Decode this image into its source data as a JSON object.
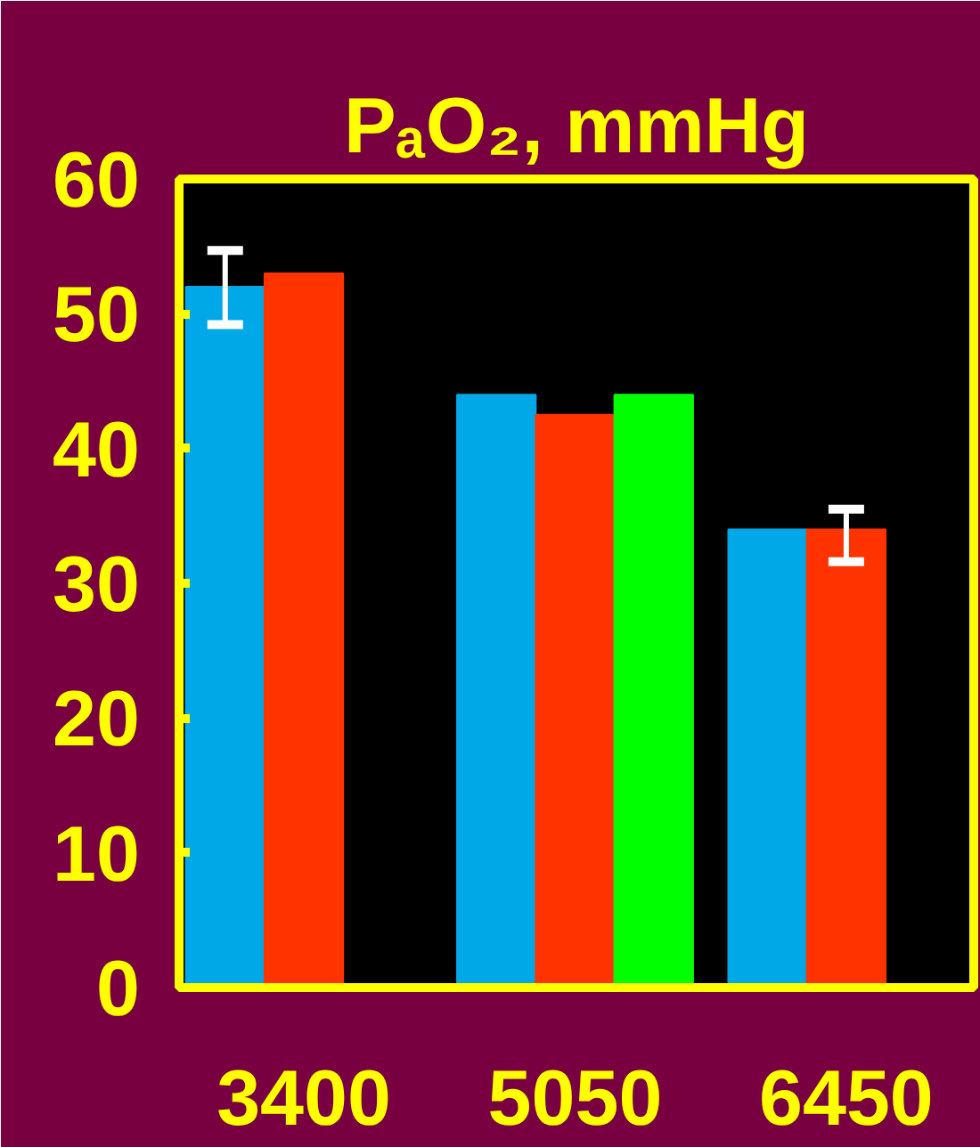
{
  "chart_data": {
    "type": "bar",
    "title": "PₐO₂, mmHg",
    "categories": [
      "3400",
      "5050",
      "6450"
    ],
    "series": [
      {
        "color": "#00a8e8",
        "values": [
          52,
          44,
          34
        ],
        "errors": [
          [
            49.2,
            54.7
          ],
          null,
          null
        ]
      },
      {
        "color": "#ff3300",
        "values": [
          53,
          42.5,
          34
        ],
        "errors": [
          null,
          null,
          [
            31.6,
            35.5
          ]
        ]
      },
      {
        "color": "#00ff00",
        "values": [
          null,
          44,
          null
        ]
      }
    ],
    "ylim": [
      0,
      60
    ],
    "yticks": [
      0,
      10,
      20,
      30,
      40,
      50,
      60
    ],
    "grid": false
  }
}
